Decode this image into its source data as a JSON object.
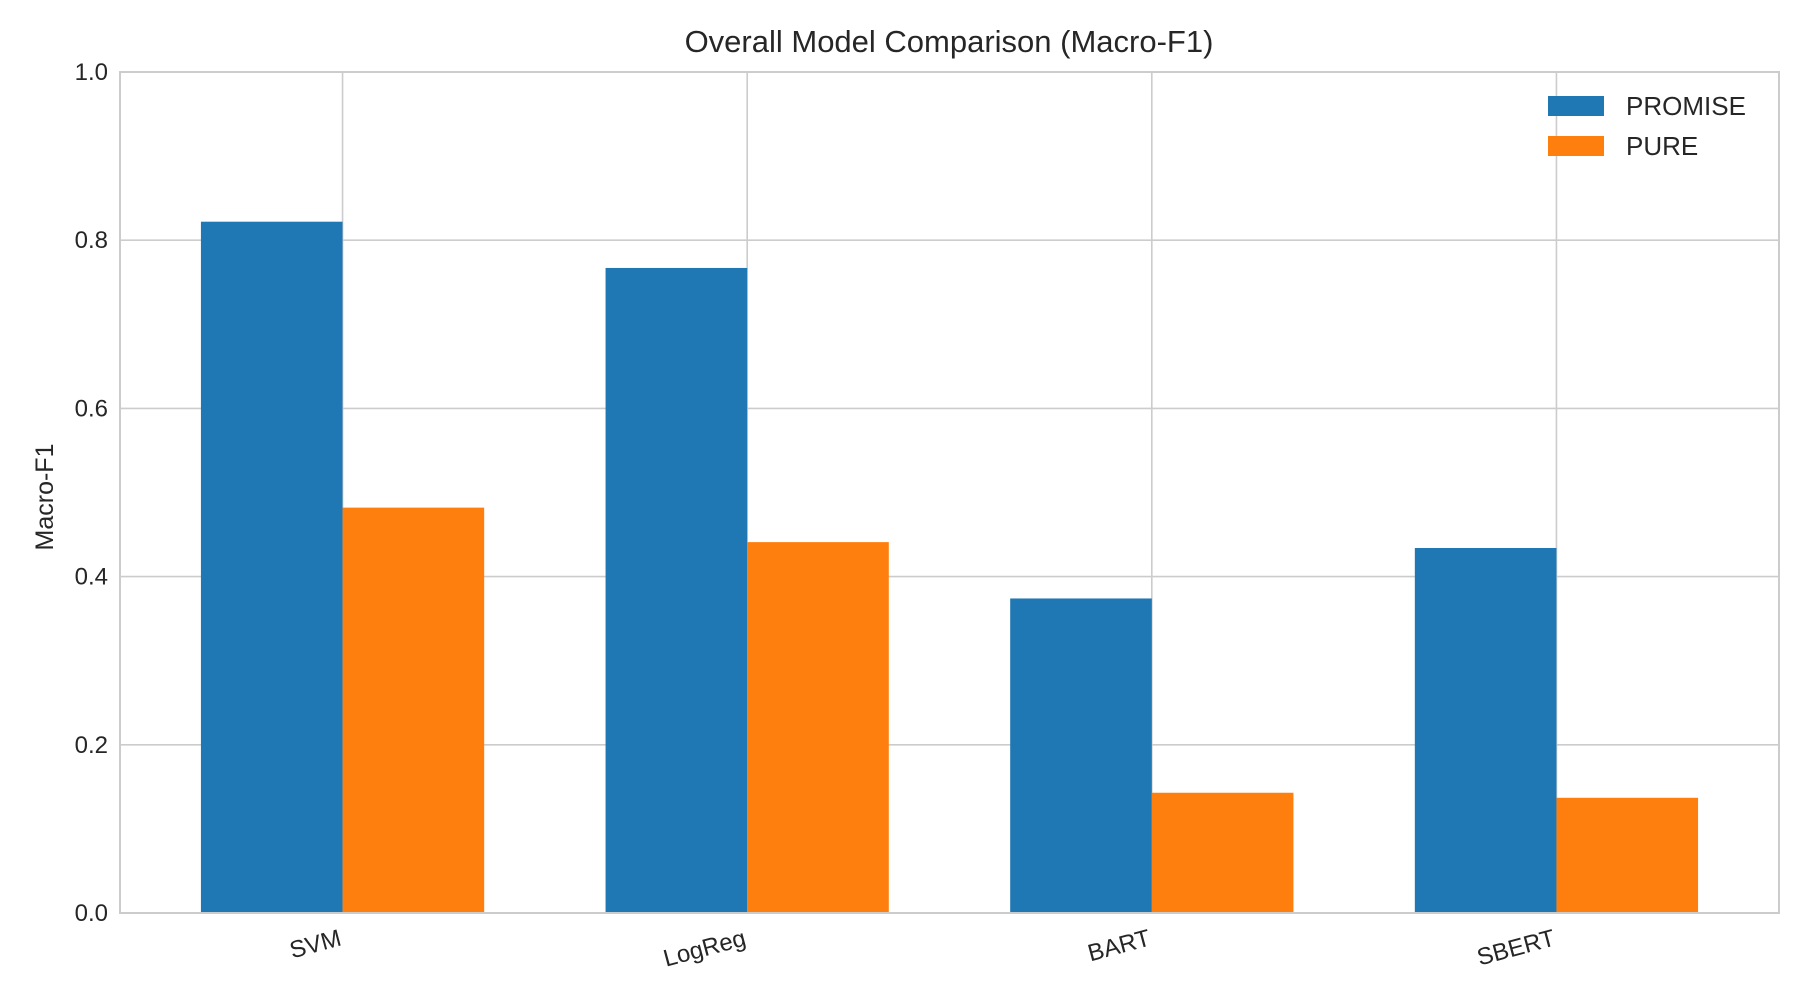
{
  "chart_data": {
    "type": "bar",
    "title": "Overall Model Comparison (Macro-F1)",
    "xlabel": "",
    "ylabel": "Macro-F1",
    "categories": [
      "SVM",
      "LogReg",
      "BART",
      "SBERT"
    ],
    "series": [
      {
        "name": "PROMISE",
        "color": "#1f77b4",
        "values": [
          0.822,
          0.767,
          0.374,
          0.434
        ]
      },
      {
        "name": "PURE",
        "color": "#ff7f0e",
        "values": [
          0.482,
          0.441,
          0.143,
          0.137
        ]
      }
    ],
    "ylim": [
      0,
      1.0
    ],
    "yticks": [
      "0.0",
      "0.2",
      "0.4",
      "0.6",
      "0.8",
      "1.0"
    ],
    "grid": true,
    "legend_position": "top-right"
  }
}
